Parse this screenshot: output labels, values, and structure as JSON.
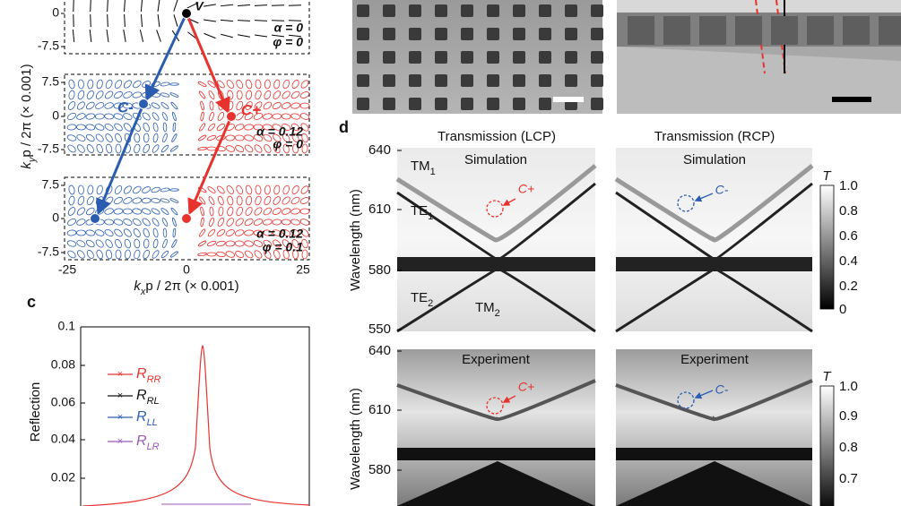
{
  "panel_a": {
    "boxes": [
      {
        "yticks": [
          0,
          -7.5
        ],
        "alpha": "α = 0",
        "phi": "φ = 0"
      },
      {
        "yticks": [
          7.5,
          0,
          -7.5
        ],
        "alpha": "α = 0.12",
        "phi": "φ = 0"
      },
      {
        "yticks": [
          7.5,
          0,
          -7.5
        ],
        "alpha": "α = 0.12",
        "phi": "φ = 0.1"
      }
    ],
    "xticks": [
      -25,
      0,
      25
    ],
    "xlabel": "k",
    "xlabel_sub": "x",
    "xlabel_rest": "p / 2π (× 0.001)",
    "ylabel": "k",
    "ylabel_sub": "y",
    "ylabel_rest": "p / 2π (× 0.001)",
    "v": "V",
    "c_minus": "C-",
    "c_plus": "C+"
  },
  "panel_c": {
    "label": "c",
    "ylabel": "Reflection",
    "yticks": [
      0.1,
      0.08,
      0.06,
      0.04,
      0.02
    ],
    "legend": [
      {
        "main": "R",
        "sub": "RR",
        "color": "#e8322d"
      },
      {
        "main": "R",
        "sub": "RL",
        "color": "#111111"
      },
      {
        "main": "R",
        "sub": "LL",
        "color": "#2a5db0"
      },
      {
        "main": "R",
        "sub": "LR",
        "color": "#9b59b6"
      }
    ]
  },
  "panel_d": {
    "label": "d",
    "titles": [
      "Transmission (LCP)",
      "Transmission (RCP)"
    ],
    "ylabel": "Wavelength (nm)",
    "sim_yticks": [
      640,
      610,
      580,
      550
    ],
    "exp_yticks": [
      640,
      610,
      580
    ],
    "colorbar_label": "T",
    "sim_cbar_ticks": [
      "1.0",
      0.8,
      0.6,
      0.4,
      0.2,
      0
    ],
    "exp_cbar_ticks": [
      "1.0",
      0.9,
      0.8,
      0.7
    ],
    "sim": {
      "heading": "Simulation",
      "lcp_mark": "C+",
      "rcp_mark": "C-"
    },
    "exp": {
      "heading": "Experiment",
      "lcp_mark": "C+",
      "rcp_mark": "C-"
    },
    "modes": [
      {
        "main": "TM",
        "sub": "1"
      },
      {
        "main": "TE",
        "sub": "1"
      },
      {
        "main": "TE",
        "sub": "2"
      },
      {
        "main": "TM",
        "sub": "2"
      }
    ]
  }
}
